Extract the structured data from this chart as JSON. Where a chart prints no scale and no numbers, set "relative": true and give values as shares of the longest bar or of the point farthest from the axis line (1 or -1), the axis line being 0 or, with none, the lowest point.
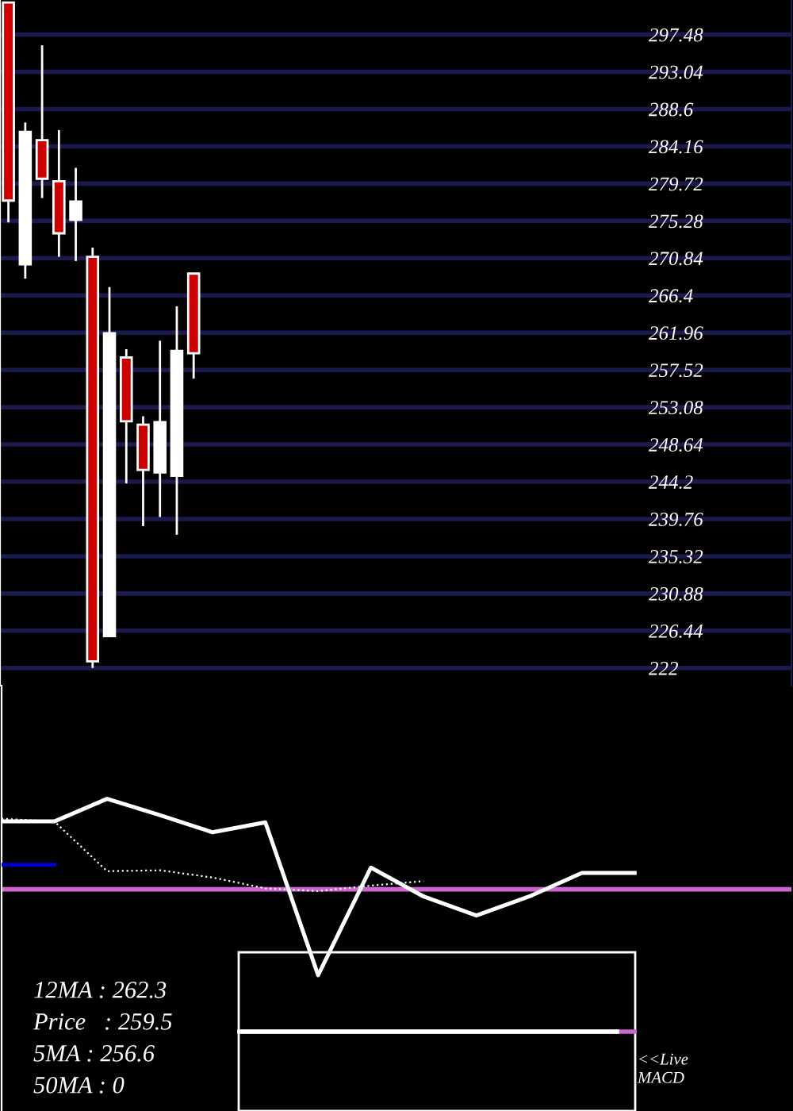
{
  "chart_data": [
    {
      "type": "candlestick",
      "categories": [
        null,
        null,
        null,
        null,
        null,
        null,
        null,
        null,
        null,
        null,
        null,
        null,
        null,
        null,
        null,
        null,
        null,
        null,
        null,
        null,
        null,
        null,
        null,
        null,
        null,
        null,
        null,
        null,
        null,
        null,
        null,
        null,
        null,
        null,
        null,
        null,
        null,
        null,
        null,
        null,
        null,
        null,
        null,
        null,
        null,
        null,
        null
      ],
      "ohlc": [
        [
          301.3,
          301.3,
          275.1,
          277.7
        ],
        [
          270.1,
          287.0,
          268.4,
          285.9
        ],
        [
          284.9,
          296.2,
          278.0,
          280.3
        ],
        [
          280.0,
          286.1,
          271.0,
          273.8
        ],
        [
          275.4,
          281.6,
          270.5,
          277.6
        ],
        [
          271.0,
          272.1,
          222.0,
          222.8
        ],
        [
          225.8,
          267.4,
          225.8,
          261.9
        ],
        [
          259.0,
          260.0,
          244.0,
          251.4
        ],
        [
          251.0,
          252.0,
          238.9,
          245.6
        ],
        [
          245.3,
          261.0,
          240.0,
          251.3
        ],
        [
          244.9,
          265.1,
          237.9,
          259.8
        ],
        [
          269.0,
          269.0,
          256.5,
          259.5
        ],
        null,
        null,
        null,
        null,
        null,
        null,
        null,
        null,
        null,
        null,
        null,
        null,
        null,
        null,
        null,
        null,
        null,
        null,
        null,
        null,
        null,
        null,
        null,
        null,
        null,
        null,
        null,
        null,
        null,
        null,
        null,
        null,
        null,
        null,
        null
      ],
      "colors": [
        "#cc0000",
        "#ffffff",
        "#cc0000",
        "#cc0000",
        "#ffffff",
        "#cc0000",
        "#ffffff",
        "#cc0000",
        "#cc0000",
        "#ffffff",
        "#ffffff",
        "#cc0000",
        null,
        null,
        null,
        null,
        null,
        null,
        null,
        null,
        null,
        null,
        null,
        null,
        null,
        null,
        null,
        null,
        null,
        null,
        null,
        null,
        null,
        null,
        null,
        null,
        null,
        null,
        null,
        null,
        null,
        null,
        null,
        null,
        null,
        null,
        null
      ],
      "ylim": [
        219.9,
        301.6
      ],
      "yticks": [
        297.48,
        293.04,
        288.6,
        284.16,
        279.72,
        275.28,
        270.84,
        266.4,
        261.96,
        257.52,
        253.08,
        248.64,
        244.2,
        239.76,
        235.32,
        230.88,
        226.44,
        222
      ],
      "grid": "y",
      "tick_labels": "y",
      "annotations": [
        "12MA : 262.3",
        "Price   : 259.5",
        "5MA : 256.6",
        "50MA : 0"
      ]
    },
    {
      "type": "line",
      "relative": true,
      "categories": [
        null,
        null,
        null,
        null,
        null,
        null,
        null,
        null,
        null,
        null,
        null,
        null,
        null
      ],
      "series": [
        {
          "color": "#ffffff",
          "line_style": "solid",
          "values": [
            0.75,
            0.75,
            1,
            0.82,
            0.63,
            0.74,
            -0.95,
            0.24,
            -0.08,
            -0.29,
            -0.08,
            0.18,
            0.18
          ]
        },
        {
          "color": "#ffffff",
          "line_style": "dotted",
          "values": [
            0.78,
            0.75,
            0.2,
            0.21,
            0.13,
            0.01,
            -0.02,
            0.04,
            0.09,
            null,
            null,
            null,
            null
          ]
        },
        {
          "color": "#0000cc",
          "line_style": "solid",
          "values": [
            0.27,
            0.27,
            null,
            null,
            null,
            null,
            null,
            null,
            null,
            null,
            null,
            null,
            null
          ]
        }
      ],
      "ref_lines": [
        {
          "axis": "y",
          "value": 0,
          "color": "#cc66cc"
        }
      ],
      "annotations": [
        "<<Live\nMACD"
      ]
    }
  ]
}
